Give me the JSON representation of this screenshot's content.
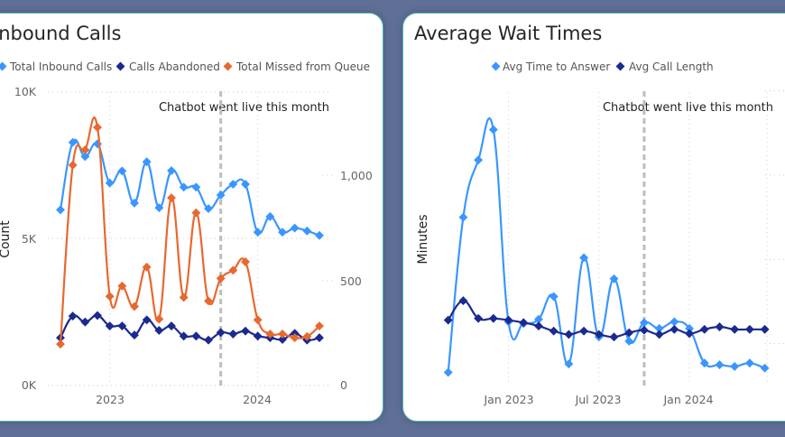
{
  "colors": {
    "blue": "#3a96ff",
    "navy": "#1b2a8f",
    "orange": "#e8682f",
    "background": "#5f6f96",
    "border": "#4fb3b3"
  },
  "chart_data": [
    {
      "type": "line",
      "title": "Inbound Calls",
      "x": [
        "Sep 2022",
        "Oct 2022",
        "Nov 2022",
        "Dec 2022",
        "Jan 2023",
        "Feb 2023",
        "Mar 2023",
        "Apr 2023",
        "May 2023",
        "Jun 2023",
        "Jul 2023",
        "Aug 2023",
        "Sep 2023",
        "Oct 2023",
        "Nov 2023",
        "Dec 2023",
        "Jan 2024",
        "Feb 2024",
        "Mar 2024",
        "Apr 2024",
        "May 2024",
        "Jun 2024"
      ],
      "xticks": [
        {
          "index": 4,
          "label": "2023"
        },
        {
          "index": 16,
          "label": "2024"
        }
      ],
      "ylabel": "Count",
      "ylim": [
        0,
        10000
      ],
      "yticks": [
        "0K",
        "5K",
        "10K"
      ],
      "y2lim": [
        0,
        1400
      ],
      "y2ticks": [
        "0",
        "500",
        "1,000"
      ],
      "legend": "top",
      "series": [
        {
          "name": "Total Inbound Calls",
          "axis": "left",
          "color": "#3a96ff",
          "values": [
            5970,
            8260,
            7780,
            8210,
            6880,
            7290,
            6200,
            7600,
            6040,
            7300,
            6740,
            6740,
            6010,
            6470,
            6840,
            6840,
            5210,
            5740,
            5210,
            5350,
            5250,
            5100
          ]
        },
        {
          "name": "Calls Abandoned",
          "axis": "right",
          "color": "#1b2a8f",
          "values": [
            227,
            330,
            302,
            333,
            283,
            283,
            240,
            312,
            262,
            283,
            235,
            235,
            216,
            252,
            245,
            259,
            235,
            227,
            219,
            248,
            216,
            227
          ]
        },
        {
          "name": "Total Missed from Queue",
          "axis": "right",
          "color": "#e8682f",
          "values": [
            197,
            1048,
            1120,
            1227,
            424,
            473,
            376,
            563,
            316,
            892,
            419,
            821,
            402,
            509,
            548,
            588,
            312,
            245,
            245,
            227,
            233,
            283
          ]
        }
      ],
      "annotation": {
        "index": 13,
        "text": "Chatbot went live this month"
      }
    },
    {
      "type": "line",
      "title": "Average Wait Times",
      "x": [
        "Sep 2022",
        "Oct 2022",
        "Nov 2022",
        "Dec 2022",
        "Jan 2023",
        "Feb 2023",
        "Mar 2023",
        "Apr 2023",
        "May 2023",
        "Jun 2023",
        "Jul 2023",
        "Aug 2023",
        "Sep 2023",
        "Oct 2023",
        "Nov 2023",
        "Dec 2023",
        "Jan 2024",
        "Feb 2024",
        "Mar 2024",
        "Apr 2024",
        "May 2024",
        "Jun 2024"
      ],
      "xticks": [
        {
          "index": 4,
          "label": "Jan 2023"
        },
        {
          "index": 10,
          "label": "Jul 2023"
        },
        {
          "index": 16,
          "label": "Jan 2024"
        }
      ],
      "ylabel": "Minutes",
      "ylim": [
        0.5,
        4
      ],
      "legend": "top",
      "series": [
        {
          "name": "Avg Time to Answer",
          "color": "#3a96ff",
          "values": [
            0.66,
            2.5,
            3.18,
            3.54,
            1.26,
            1.24,
            1.29,
            1.56,
            0.76,
            2.02,
            1.08,
            1.77,
            1.03,
            1.25,
            1.18,
            1.26,
            1.18,
            0.77,
            0.75,
            0.73,
            0.77,
            0.71
          ]
        },
        {
          "name": "Avg Call Length",
          "color": "#1b2a8f",
          "values": [
            1.28,
            1.51,
            1.3,
            1.3,
            1.28,
            1.25,
            1.21,
            1.15,
            1.11,
            1.15,
            1.11,
            1.08,
            1.13,
            1.16,
            1.11,
            1.17,
            1.12,
            1.17,
            1.2,
            1.17,
            1.17,
            1.17
          ]
        }
      ],
      "annotation": {
        "index": 13,
        "text": "Chatbot went live this month"
      }
    }
  ]
}
